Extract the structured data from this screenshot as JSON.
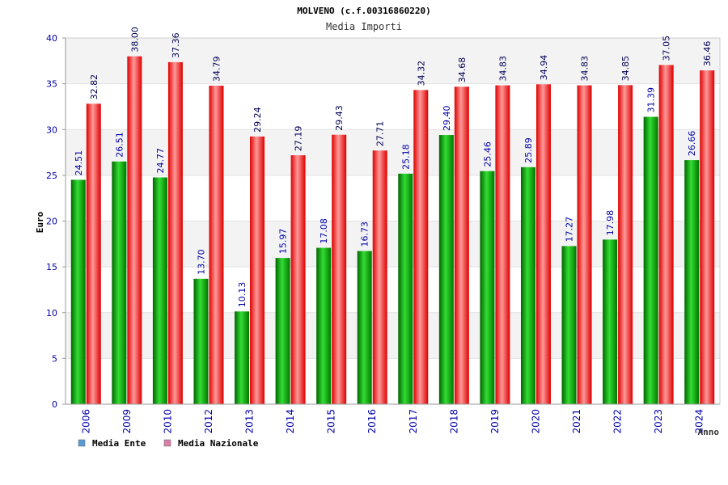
{
  "chart_data": {
    "type": "bar",
    "title": "MOLVENO (c.f.00316860220)",
    "subtitle": "Media Importi",
    "xlabel": "Anno",
    "ylabel": "Euro",
    "ylim": [
      0,
      40
    ],
    "yticks": [
      0,
      5,
      10,
      15,
      20,
      25,
      30,
      35,
      40
    ],
    "grid": true,
    "legend_position": "bottom-left",
    "categories": [
      "2006",
      "2009",
      "2010",
      "2012",
      "2013",
      "2014",
      "2015",
      "2016",
      "2017",
      "2018",
      "2019",
      "2020",
      "2021",
      "2022",
      "2023",
      "2024"
    ],
    "series": [
      {
        "name": "Media Ente",
        "color": "#00aa00",
        "legend_color": "#5b9bd5",
        "values": [
          24.51,
          26.51,
          24.77,
          13.7,
          10.13,
          15.97,
          17.08,
          16.73,
          25.18,
          29.4,
          25.46,
          25.89,
          17.27,
          17.98,
          31.39,
          26.66
        ],
        "labels": [
          "24.51",
          "26.51",
          "24.77",
          "13.70",
          "10.13",
          "15.97",
          "17.08",
          "16.73",
          "25.18",
          "29.40",
          "25.46",
          "25.89",
          "17.27",
          "17.98",
          "31.39",
          "26.66"
        ]
      },
      {
        "name": "Media Nazionale",
        "color": "#ee1111",
        "legend_color": "#d97fa6",
        "values": [
          32.82,
          38.0,
          37.36,
          34.79,
          29.24,
          27.19,
          29.43,
          27.71,
          34.32,
          34.68,
          34.83,
          34.94,
          34.83,
          34.85,
          37.05,
          36.46
        ],
        "labels": [
          "32.82",
          "38.00",
          "37.36",
          "34.79",
          "29.24",
          "27.19",
          "29.43",
          "27.71",
          "34.32",
          "34.68",
          "34.83",
          "34.94",
          "34.83",
          "34.85",
          "37.05",
          "36.46"
        ]
      }
    ]
  }
}
